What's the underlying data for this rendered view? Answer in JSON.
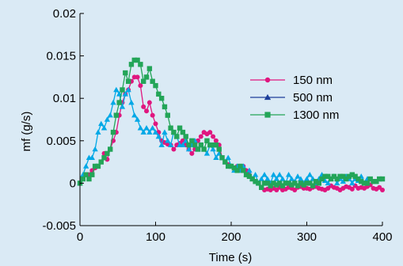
{
  "chart_data": {
    "type": "line",
    "xlabel": "Time (s)",
    "ylabel": "mf (g/s)",
    "xlim": [
      0,
      400
    ],
    "ylim": [
      -0.005,
      0.02
    ],
    "x_ticks": [
      0,
      100,
      200,
      300,
      400
    ],
    "y_ticks": [
      -0.005,
      0,
      0.005,
      0.01,
      0.015,
      0.02
    ],
    "x_tick_labels": [
      "0",
      "100",
      "200",
      "300",
      "400"
    ],
    "y_tick_labels": [
      "-0.005",
      "0",
      "0.005",
      "0.01",
      "0.015",
      "0.02"
    ],
    "grid": false,
    "legend_position": "upper-right",
    "series": [
      {
        "name": "150 nm",
        "color": "#e0167f",
        "marker": "circle",
        "points": [
          [
            0,
            0.0
          ],
          [
            4,
            0.0005
          ],
          [
            8,
            0.001
          ],
          [
            12,
            0.001
          ],
          [
            16,
            0.0015
          ],
          [
            20,
            0.0018
          ],
          [
            24,
            0.002
          ],
          [
            28,
            0.0025
          ],
          [
            32,
            0.0035
          ],
          [
            36,
            0.0028
          ],
          [
            40,
            0.004
          ],
          [
            44,
            0.005
          ],
          [
            48,
            0.006
          ],
          [
            52,
            0.008
          ],
          [
            56,
            0.0095
          ],
          [
            60,
            0.0105
          ],
          [
            64,
            0.011
          ],
          [
            68,
            0.012
          ],
          [
            72,
            0.0125
          ],
          [
            76,
            0.0125
          ],
          [
            80,
            0.0115
          ],
          [
            84,
            0.009
          ],
          [
            88,
            0.0085
          ],
          [
            92,
            0.0095
          ],
          [
            96,
            0.008
          ],
          [
            100,
            0.007
          ],
          [
            104,
            0.006
          ],
          [
            108,
            0.005
          ],
          [
            112,
            0.0048
          ],
          [
            116,
            0.0046
          ],
          [
            120,
            0.0045
          ],
          [
            124,
            0.004
          ],
          [
            128,
            0.0045
          ],
          [
            132,
            0.0047
          ],
          [
            136,
            0.005
          ],
          [
            140,
            0.0045
          ],
          [
            144,
            0.004
          ],
          [
            148,
            0.0035
          ],
          [
            152,
            0.004
          ],
          [
            156,
            0.005
          ],
          [
            160,
            0.0055
          ],
          [
            164,
            0.006
          ],
          [
            168,
            0.0058
          ],
          [
            172,
            0.006
          ],
          [
            176,
            0.0055
          ],
          [
            180,
            0.005
          ],
          [
            184,
            0.0045
          ],
          [
            188,
            0.003
          ],
          [
            192,
            0.0025
          ],
          [
            196,
            0.0022
          ],
          [
            200,
            0.002
          ],
          [
            204,
            0.0018
          ],
          [
            208,
            0.002
          ],
          [
            212,
            0.0015
          ],
          [
            216,
            0.002
          ],
          [
            220,
            0.0015
          ],
          [
            224,
            0.001
          ],
          [
            228,
            0.0005
          ],
          [
            232,
            0.0002
          ],
          [
            236,
            0.0
          ],
          [
            240,
            -0.0005
          ],
          [
            244,
            -0.0008
          ],
          [
            248,
            -0.0007
          ],
          [
            252,
            -0.0008
          ],
          [
            256,
            -0.0006
          ],
          [
            260,
            -0.0008
          ],
          [
            264,
            -0.0005
          ],
          [
            268,
            -0.0008
          ],
          [
            272,
            -0.0007
          ],
          [
            276,
            -0.0005
          ],
          [
            280,
            -0.0006
          ],
          [
            284,
            -0.0008
          ],
          [
            288,
            -0.0005
          ],
          [
            292,
            -0.0004
          ],
          [
            296,
            -0.0006
          ],
          [
            300,
            -0.0006
          ],
          [
            304,
            -0.0007
          ],
          [
            308,
            -0.0005
          ],
          [
            312,
            -0.0004
          ],
          [
            316,
            -0.0006
          ],
          [
            320,
            -0.0007
          ],
          [
            324,
            -0.0008
          ],
          [
            328,
            -0.0006
          ],
          [
            332,
            -0.0003
          ],
          [
            336,
            -0.0005
          ],
          [
            340,
            -0.0006
          ],
          [
            344,
            -0.0008
          ],
          [
            348,
            -0.0006
          ],
          [
            352,
            -0.0004
          ],
          [
            356,
            -0.0005
          ],
          [
            360,
            -0.0007
          ],
          [
            364,
            -0.0003
          ],
          [
            368,
            -0.0006
          ],
          [
            372,
            -0.0005
          ],
          [
            376,
            -0.0006
          ],
          [
            380,
            -0.0004
          ],
          [
            384,
            -0.0002
          ],
          [
            388,
            -0.0006
          ],
          [
            392,
            -0.0007
          ],
          [
            396,
            -0.0005
          ],
          [
            400,
            -0.0008
          ]
        ]
      },
      {
        "name": "500 nm",
        "color": "#00a8e6",
        "legend_color": "#1d3f9b",
        "marker": "triangle",
        "points": [
          [
            0,
            0.0
          ],
          [
            4,
            0.001
          ],
          [
            8,
            0.002
          ],
          [
            12,
            0.003
          ],
          [
            16,
            0.003
          ],
          [
            20,
            0.004
          ],
          [
            24,
            0.006
          ],
          [
            28,
            0.007
          ],
          [
            32,
            0.0065
          ],
          [
            36,
            0.0075
          ],
          [
            40,
            0.008
          ],
          [
            44,
            0.0095
          ],
          [
            48,
            0.011
          ],
          [
            52,
            0.0105
          ],
          [
            56,
            0.009
          ],
          [
            60,
            0.0105
          ],
          [
            64,
            0.011
          ],
          [
            68,
            0.0095
          ],
          [
            72,
            0.008
          ],
          [
            76,
            0.0075
          ],
          [
            80,
            0.0065
          ],
          [
            84,
            0.006
          ],
          [
            88,
            0.0065
          ],
          [
            92,
            0.006
          ],
          [
            96,
            0.0065
          ],
          [
            100,
            0.006
          ],
          [
            104,
            0.0055
          ],
          [
            108,
            0.0045
          ],
          [
            112,
            0.006
          ],
          [
            116,
            0.005
          ],
          [
            120,
            0.0045
          ],
          [
            124,
            0.006
          ],
          [
            128,
            0.0055
          ],
          [
            132,
            0.0045
          ],
          [
            136,
            0.0045
          ],
          [
            140,
            0.005
          ],
          [
            144,
            0.004
          ],
          [
            148,
            0.0045
          ],
          [
            152,
            0.005
          ],
          [
            156,
            0.004
          ],
          [
            160,
            0.0045
          ],
          [
            164,
            0.004
          ],
          [
            168,
            0.0035
          ],
          [
            172,
            0.0045
          ],
          [
            176,
            0.004
          ],
          [
            180,
            0.003
          ],
          [
            184,
            0.0035
          ],
          [
            188,
            0.003
          ],
          [
            192,
            0.0025
          ],
          [
            196,
            0.003
          ],
          [
            200,
            0.002
          ],
          [
            204,
            0.0015
          ],
          [
            208,
            0.002
          ],
          [
            212,
            0.0015
          ],
          [
            216,
            0.002
          ],
          [
            220,
            0.001
          ],
          [
            224,
            0.0015
          ],
          [
            228,
            0.0005
          ],
          [
            232,
            0.001
          ],
          [
            236,
            0.0
          ],
          [
            240,
            0.0005
          ],
          [
            244,
            0.001
          ],
          [
            248,
            0.0005
          ],
          [
            252,
            0.0
          ],
          [
            256,
            0.001
          ],
          [
            260,
            0.0005
          ],
          [
            264,
            0.001
          ],
          [
            268,
            0.0005
          ],
          [
            272,
            0.0
          ],
          [
            276,
            0.001
          ],
          [
            280,
            0.0005
          ],
          [
            284,
            0.0002
          ],
          [
            288,
            0.0008
          ],
          [
            292,
            0.0005
          ],
          [
            296,
            0.0
          ],
          [
            300,
            0.0005
          ],
          [
            304,
            0.001
          ],
          [
            308,
            0.0005
          ],
          [
            312,
            0.0
          ],
          [
            316,
            0.0005
          ],
          [
            320,
            0.001
          ],
          [
            324,
            0.0003
          ],
          [
            328,
            0.0
          ],
          [
            332,
            0.0005
          ],
          [
            336,
            0.0008
          ],
          [
            340,
            0.0
          ],
          [
            344,
            0.0005
          ],
          [
            348,
            0.0002
          ],
          [
            352,
            0.0008
          ],
          [
            356,
            0.0005
          ],
          [
            360,
            0.0
          ],
          [
            364,
            0.0005
          ],
          [
            368,
            0.0003
          ],
          [
            372,
            0.0008
          ],
          [
            376,
            0.0
          ],
          [
            380,
            0.0005
          ]
        ]
      },
      {
        "name": "1300 nm",
        "color": "#23a558",
        "marker": "square",
        "points": [
          [
            0,
            0.0
          ],
          [
            4,
            0.0005
          ],
          [
            8,
            0.001
          ],
          [
            12,
            0.0005
          ],
          [
            16,
            0.001
          ],
          [
            20,
            0.002
          ],
          [
            24,
            0.002
          ],
          [
            28,
            0.0025
          ],
          [
            32,
            0.003
          ],
          [
            36,
            0.0035
          ],
          [
            40,
            0.004
          ],
          [
            44,
            0.006
          ],
          [
            48,
            0.008
          ],
          [
            52,
            0.0095
          ],
          [
            56,
            0.011
          ],
          [
            60,
            0.013
          ],
          [
            64,
            0.012
          ],
          [
            68,
            0.014
          ],
          [
            72,
            0.0145
          ],
          [
            76,
            0.0145
          ],
          [
            80,
            0.014
          ],
          [
            84,
            0.012
          ],
          [
            88,
            0.0125
          ],
          [
            92,
            0.0135
          ],
          [
            96,
            0.012
          ],
          [
            100,
            0.0115
          ],
          [
            104,
            0.0105
          ],
          [
            108,
            0.01
          ],
          [
            112,
            0.009
          ],
          [
            116,
            0.008
          ],
          [
            120,
            0.0065
          ],
          [
            124,
            0.006
          ],
          [
            128,
            0.0055
          ],
          [
            132,
            0.0065
          ],
          [
            136,
            0.006
          ],
          [
            140,
            0.0055
          ],
          [
            144,
            0.0045
          ],
          [
            148,
            0.005
          ],
          [
            152,
            0.0045
          ],
          [
            156,
            0.004
          ],
          [
            160,
            0.0045
          ],
          [
            164,
            0.004
          ],
          [
            168,
            0.005
          ],
          [
            172,
            0.0045
          ],
          [
            176,
            0.0045
          ],
          [
            180,
            0.0045
          ],
          [
            184,
            0.004
          ],
          [
            188,
            0.003
          ],
          [
            192,
            0.0025
          ],
          [
            196,
            0.002
          ],
          [
            200,
            0.002
          ],
          [
            204,
            0.0018
          ],
          [
            208,
            0.0015
          ],
          [
            212,
            0.002
          ],
          [
            216,
            0.0015
          ],
          [
            220,
            0.001
          ],
          [
            224,
            0.0008
          ],
          [
            228,
            0.0005
          ],
          [
            232,
            0.0002
          ],
          [
            236,
            0.0
          ],
          [
            240,
            -0.0005
          ],
          [
            244,
            0.0
          ],
          [
            248,
            0.0
          ],
          [
            252,
            -0.0003
          ],
          [
            256,
            0.0
          ],
          [
            260,
            -0.0002
          ],
          [
            264,
            0.0
          ],
          [
            268,
            -0.0003
          ],
          [
            272,
            0.0
          ],
          [
            276,
            0.0
          ],
          [
            280,
            -0.0002
          ],
          [
            284,
            0.0
          ],
          [
            288,
            -0.0003
          ],
          [
            292,
            0.0
          ],
          [
            296,
            -0.0002
          ],
          [
            300,
            0.0
          ],
          [
            304,
            0.0
          ],
          [
            308,
            -0.0003
          ],
          [
            312,
            0.0002
          ],
          [
            316,
            0.0
          ],
          [
            320,
            0.0005
          ],
          [
            324,
            0.0008
          ],
          [
            328,
            0.0008
          ],
          [
            332,
            0.0005
          ],
          [
            336,
            0.0008
          ],
          [
            340,
            0.0005
          ],
          [
            344,
            0.0008
          ],
          [
            348,
            0.0008
          ],
          [
            352,
            0.0005
          ],
          [
            356,
            0.0008
          ],
          [
            360,
            0.001
          ],
          [
            364,
            0.0008
          ],
          [
            368,
            0.0005
          ],
          [
            372,
            0.0002
          ],
          [
            376,
            0.0
          ],
          [
            380,
            0.0
          ],
          [
            384,
            0.0005
          ],
          [
            388,
            0.0002
          ],
          [
            392,
            0.0002
          ],
          [
            396,
            0.0005
          ],
          [
            400,
            0.0005
          ]
        ]
      }
    ]
  }
}
